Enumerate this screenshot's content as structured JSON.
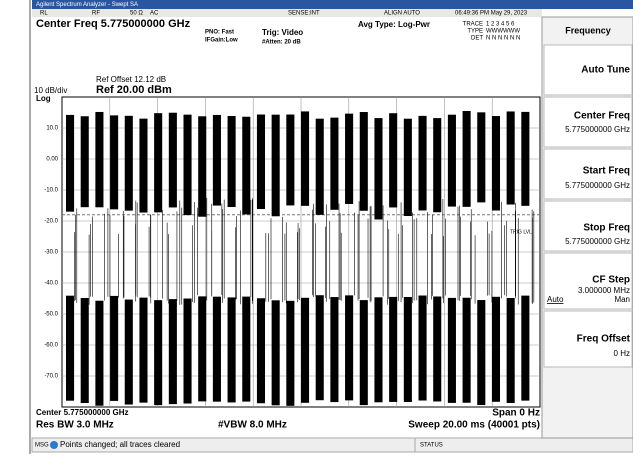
{
  "window": {
    "title": "Agilent Spectrum Analyzer - Swept SA"
  },
  "status_row": {
    "rl": "RL",
    "rf": "RF",
    "impedance": "50 Ω",
    "coupling": "AC",
    "sense": "SENSE:INT",
    "align": "ALIGN AUTO",
    "datetime": "06:49:36 PM May 29, 2023"
  },
  "header": {
    "center_freq": "Center Freq 5.775000000 GHz",
    "pno": "PNO: Fast",
    "ifgain": "IFGain:Low",
    "trig": "Trig: Video",
    "atten": "#Atten: 20 dB",
    "avg_type": "Avg Type: Log-Pwr",
    "trace_label": "TRACE",
    "trace_nums": "1 2 3 4 5 6",
    "type_label": "TYPE",
    "type_vals": "WWWWWW",
    "det_label": "DET",
    "det_vals": "N N N N N N"
  },
  "scale": {
    "ref_offset": "Ref Offset 12.12 dB",
    "div": "10 dB/div",
    "ref": "Ref 20.00 dBm",
    "log": "Log",
    "trig_lvl": "TRIG LVL",
    "y_labels": [
      "10.0",
      "0.00",
      "-10.0",
      "-20.0",
      "-30.0",
      "-40.0",
      "-50.0",
      "-60.0",
      "-70.0"
    ]
  },
  "footer": {
    "center": "Center 5.775000000 GHz",
    "span": "Span 0 Hz",
    "rbw": "Res BW 3.0 MHz",
    "vbw": "#VBW 8.0 MHz",
    "sweep": "Sweep  20.00 ms (40001 pts)"
  },
  "message": {
    "tag": "MSG",
    "text": "Points changed; all traces cleared",
    "status": "STATUS"
  },
  "softkeys": {
    "menu": "Frequency",
    "auto_tune": "Auto Tune",
    "center_freq": "Center Freq",
    "center_val": "5.775000000 GHz",
    "start_freq": "Start Freq",
    "start_val": "5.775000000 GHz",
    "stop_freq": "Stop Freq",
    "stop_val": "5.775000000 GHz",
    "cf_step": "CF Step",
    "cf_step_val": "3.000000 MHz",
    "auto": "Auto",
    "man": "Man",
    "freq_offset": "Freq Offset",
    "freq_offset_val": "0 Hz"
  }
}
